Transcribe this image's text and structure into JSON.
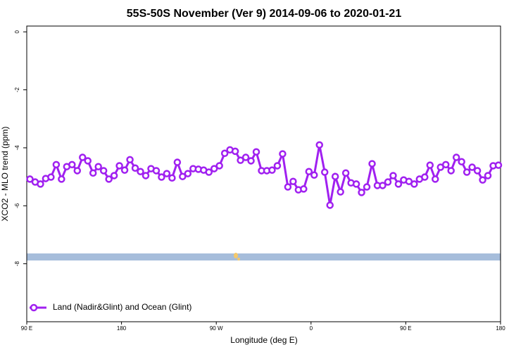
{
  "chart_data": {
    "type": "line",
    "title": "55S-50S November (Ver 9)   2014-09-06 to 2020-01-21",
    "x_label": "Longitude (deg E)",
    "y_label": "XCO2 - MLO trend (ppm)",
    "x": [
      93,
      98,
      103,
      108,
      113,
      118,
      123,
      128,
      133,
      138,
      143,
      148,
      153,
      158,
      163,
      168,
      173,
      178,
      183,
      188,
      193,
      198,
      203,
      208,
      213,
      218,
      223,
      228,
      233,
      238,
      243,
      248,
      253,
      258,
      263,
      268,
      273,
      278,
      283,
      288,
      293,
      298,
      303,
      308,
      313,
      318,
      323,
      328,
      333,
      338,
      343,
      348,
      353,
      358,
      363,
      368,
      373,
      378,
      383,
      388,
      393,
      398,
      403,
      408,
      413,
      418,
      423,
      428,
      433,
      438,
      443,
      448,
      453,
      458,
      463,
      468,
      473,
      478,
      483,
      488,
      493,
      498,
      503,
      508,
      513,
      518,
      523,
      528,
      533,
      538
    ],
    "series": [
      {
        "name": "Land (Nadir&Glint) and Ocean (Glint)",
        "color": "#a020f0",
        "values": [
          -5.08,
          -5.18,
          -5.25,
          -5.06,
          -5.01,
          -4.58,
          -5.08,
          -4.65,
          -4.58,
          -4.79,
          -4.33,
          -4.45,
          -4.87,
          -4.65,
          -4.79,
          -5.08,
          -4.96,
          -4.62,
          -4.77,
          -4.41,
          -4.7,
          -4.82,
          -4.96,
          -4.72,
          -4.79,
          -5.01,
          -4.89,
          -5.04,
          -4.5,
          -4.99,
          -4.89,
          -4.72,
          -4.74,
          -4.77,
          -4.84,
          -4.72,
          -4.62,
          -4.19,
          -4.07,
          -4.12,
          -4.43,
          -4.33,
          -4.45,
          -4.14,
          -4.79,
          -4.79,
          -4.77,
          -4.62,
          -4.21,
          -5.35,
          -5.16,
          -5.45,
          -5.42,
          -4.82,
          -4.94,
          -3.9,
          -4.84,
          -5.98,
          -4.99,
          -5.52,
          -4.87,
          -5.21,
          -5.25,
          -5.54,
          -5.35,
          -4.55,
          -5.3,
          -5.3,
          -5.18,
          -4.96,
          -5.25,
          -5.11,
          -5.16,
          -5.25,
          -5.08,
          -5.01,
          -4.6,
          -5.08,
          -4.67,
          -4.58,
          -4.79,
          -4.33,
          -4.48,
          -4.84,
          -4.67,
          -4.79,
          -5.11,
          -4.96,
          -4.62,
          -4.6
        ]
      }
    ],
    "xlim": [
      90,
      540
    ],
    "xticks": [
      {
        "value": 90,
        "label": "90 E"
      },
      180,
      {
        "value": 270,
        "label": "90 W"
      },
      {
        "value": 360,
        "label": "0"
      },
      {
        "value": 450,
        "label": "90 E"
      },
      {
        "value": 540,
        "label": "180"
      }
    ],
    "ylim": [
      -10,
      0.2
    ],
    "yticks": [
      0,
      -2,
      -4,
      -6,
      -8
    ],
    "legend": "bottom-left"
  }
}
